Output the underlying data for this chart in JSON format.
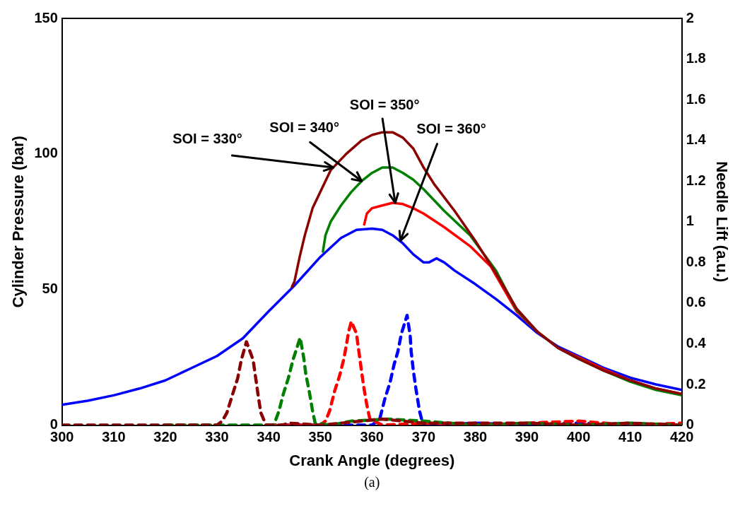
{
  "chart_data": {
    "type": "line",
    "xlabel": "Crank Angle (degrees)",
    "ylabel": "Cylinder Pressure (bar)",
    "y2label": "Needle Lift (a.u.)",
    "marker": "none",
    "xlim": [
      300,
      420
    ],
    "xticks": [
      300,
      310,
      320,
      330,
      340,
      350,
      360,
      370,
      380,
      390,
      400,
      410,
      420
    ],
    "ylim": [
      0,
      150
    ],
    "yticks": [
      0,
      50,
      100,
      150
    ],
    "y2lim": [
      0,
      2
    ],
    "y2ticks": [
      0,
      0.2,
      0.4,
      0.6,
      0.8,
      1,
      1.2,
      1.4,
      1.6,
      1.8,
      2
    ],
    "annotations": [
      {
        "text": "SOI = 330°",
        "x": 352.5,
        "y": 95
      },
      {
        "text": "SOI = 340°",
        "x": 358,
        "y": 90
      },
      {
        "text": "SOI = 350°",
        "x": 364.5,
        "y": 82
      },
      {
        "text": "SOI = 360°",
        "x": 365.5,
        "y": 68
      },
      "(a)"
    ],
    "series": [
      {
        "color": "#8b0000",
        "axis": "y",
        "line_style": "solid",
        "x": [
          344.5,
          345,
          346,
          347,
          348.5,
          350,
          352,
          355,
          358,
          360,
          362,
          364,
          366,
          368,
          370,
          372,
          376,
          380,
          384,
          388,
          392,
          396,
          400,
          405,
          410,
          415,
          420
        ],
        "values": [
          51,
          53,
          62,
          70,
          80,
          86,
          94,
          100,
          105,
          107,
          108,
          108,
          106,
          102,
          95,
          89,
          79,
          68,
          56,
          43,
          34.5,
          28.5,
          24.5,
          20,
          16.5,
          13.5,
          11.5
        ]
      },
      {
        "color": "#008000",
        "axis": "y",
        "line_style": "solid",
        "x": [
          350.5,
          351,
          352,
          354,
          356,
          358,
          360,
          362,
          364,
          366,
          368,
          370,
          374,
          379,
          384,
          388,
          392,
          396,
          400,
          405,
          410,
          415,
          420
        ],
        "values": [
          64,
          70,
          75,
          81,
          86,
          90,
          93,
          95,
          95,
          93,
          90.5,
          87,
          79,
          70,
          57,
          42.5,
          34.5,
          28.5,
          24.5,
          20,
          16,
          13,
          11
        ]
      },
      {
        "color": "#ff0000",
        "axis": "y",
        "line_style": "solid",
        "x": [
          358.5,
          359,
          360,
          362,
          364,
          366,
          368,
          370,
          374,
          379,
          383,
          388,
          392,
          396,
          400,
          405,
          410,
          415,
          420
        ],
        "values": [
          74,
          78,
          80,
          81,
          82,
          81.5,
          80,
          78,
          73,
          66,
          58.5,
          42,
          34.5,
          28.5,
          25,
          20.5,
          16.5,
          13.5,
          11.5
        ]
      },
      {
        "color": "#0000ff",
        "axis": "y",
        "line_style": "solid",
        "x": [
          300,
          305,
          310,
          315,
          320,
          325,
          330,
          335,
          340,
          345,
          350,
          354,
          357,
          360,
          362,
          364,
          366,
          368,
          370,
          371,
          372.5,
          374,
          376,
          380,
          384,
          388,
          392,
          396,
          400,
          405,
          410,
          415,
          420
        ],
        "values": [
          7.5,
          9,
          11,
          13.5,
          16.5,
          21,
          25.5,
          32,
          42,
          51.5,
          62,
          69,
          72,
          72.5,
          72,
          70,
          67,
          63,
          60,
          60,
          61.5,
          60,
          57,
          52,
          46.5,
          40.5,
          34,
          29,
          25.5,
          21,
          17.5,
          15,
          13
        ]
      },
      {
        "color": "#8b0000",
        "axis": "y2",
        "line_style": "dashed",
        "x": [
          300,
          310,
          320,
          330,
          331,
          331.9,
          333,
          334,
          334.7,
          335.7,
          337,
          337.5,
          338,
          338.5,
          339.5,
          341,
          342.5,
          344,
          350,
          362,
          370,
          380,
          390,
          400,
          410,
          420
        ],
        "values": [
          0,
          0,
          0,
          0,
          0.02,
          0.06,
          0.15,
          0.23,
          0.32,
          0.41,
          0.32,
          0.23,
          0.14,
          0.06,
          0,
          0,
          0,
          0.01,
          0,
          0.03,
          0.01,
          0.01,
          0.01,
          0,
          0.01,
          0
        ]
      },
      {
        "color": "#008000",
        "axis": "y2",
        "line_style": "dashed",
        "x": [
          320,
          330,
          340,
          341,
          342,
          342.8,
          343.8,
          344.7,
          346.1,
          346.8,
          347.2,
          347.9,
          348.5,
          349,
          352,
          356,
          363,
          370,
          380,
          390,
          400,
          410,
          420
        ],
        "values": [
          0,
          0,
          0,
          0,
          0.07,
          0.15,
          0.23,
          0.32,
          0.43,
          0.33,
          0.25,
          0.16,
          0.07,
          0.01,
          0,
          0.02,
          0.03,
          0.02,
          0,
          0.01,
          0,
          0.01,
          0
        ]
      },
      {
        "color": "#ff0000",
        "axis": "y2",
        "line_style": "dashed",
        "x": [
          340,
          350,
          351,
          351.8,
          352.8,
          353.7,
          354.6,
          355.5,
          356,
          357,
          357.9,
          358.4,
          359,
          359.6,
          362,
          370,
          380,
          390,
          400,
          410,
          420
        ],
        "values": [
          0,
          0,
          0.02,
          0.07,
          0.17,
          0.24,
          0.33,
          0.46,
          0.51,
          0.45,
          0.28,
          0.19,
          0.1,
          0.03,
          0,
          0.01,
          0,
          0.01,
          0.02,
          0,
          0.01
        ]
      },
      {
        "color": "#0000ff",
        "axis": "y2",
        "line_style": "dashed",
        "x": [
          340,
          350,
          360,
          361.5,
          362.5,
          363.5,
          364.3,
          365,
          365.7,
          366.8,
          367.1,
          367.4,
          367.6,
          368,
          368.5,
          369.2,
          369.8,
          372,
          380,
          390,
          400,
          410,
          420
        ],
        "values": [
          0,
          0,
          0,
          0.03,
          0.13,
          0.21,
          0.3,
          0.36,
          0.45,
          0.54,
          0.49,
          0.44,
          0.36,
          0.27,
          0.18,
          0.07,
          0.01,
          0,
          0.01,
          0,
          0.01,
          0,
          0
        ]
      }
    ]
  }
}
